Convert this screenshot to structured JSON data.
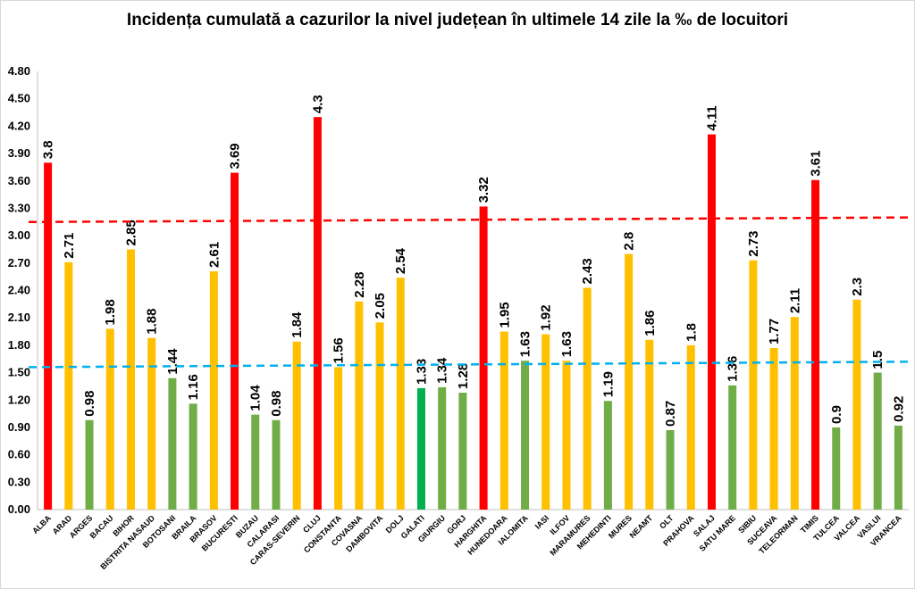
{
  "chart_data": {
    "type": "bar",
    "title": "Incidența cumulată a cazurilor la nivel județean în ultimele 14 zile la ‰ de locuitori",
    "xlabel": "",
    "ylabel": "",
    "ylim": [
      0,
      4.8
    ],
    "yticks": [
      "0.00",
      "0.30",
      "0.60",
      "0.90",
      "1.20",
      "1.50",
      "1.80",
      "2.10",
      "2.40",
      "2.70",
      "3.00",
      "3.30",
      "3.60",
      "3.90",
      "4.20",
      "4.50",
      "4.80"
    ],
    "grid": false,
    "legend": "none",
    "categories": [
      "ALBA",
      "ARAD",
      "ARGES",
      "BACAU",
      "BIHOR",
      "BISTRITA NASAUD",
      "BOTOSANI",
      "BRAILA",
      "BRASOV",
      "BUCURESTI",
      "BUZAU",
      "CALARASI",
      "CARAS-SEVERIN",
      "CLUJ",
      "CONSTANTA",
      "COVASNA",
      "DAMBOVITA",
      "DOLJ",
      "GALATI",
      "GIURGIU",
      "GORJ",
      "HARGHITA",
      "HUNEDOARA",
      "IALOMITA",
      "IASI",
      "ILFOV",
      "MARAMURES",
      "MEHEDINTI",
      "MURES",
      "NEAMT",
      "OLT",
      "PRAHOVA",
      "SALAJ",
      "SATU MARE",
      "SIBIU",
      "SUCEAVA",
      "TELEORMAN",
      "TIMIS",
      "TULCEA",
      "VALCEA",
      "VASLUI",
      "VRANCEA"
    ],
    "values": [
      3.8,
      2.71,
      0.98,
      1.98,
      2.85,
      1.88,
      1.44,
      1.16,
      2.61,
      3.69,
      1.04,
      0.98,
      1.84,
      4.3,
      1.56,
      2.28,
      2.05,
      2.54,
      1.33,
      1.34,
      1.28,
      3.32,
      1.95,
      1.63,
      1.92,
      1.63,
      2.43,
      1.19,
      2.8,
      1.86,
      0.87,
      1.8,
      4.11,
      1.36,
      2.73,
      1.77,
      2.11,
      3.61,
      0.9,
      2.3,
      1.5,
      0.92
    ],
    "data_labels": [
      "3.8",
      "2.71",
      "0.98",
      "1.98",
      "2.85",
      "1.88",
      "1.44",
      "1.16",
      "2.61",
      "3.69",
      "1.04",
      "0.98",
      "1.84",
      "4.3",
      "1.56",
      "2.28",
      "2.05",
      "2.54",
      "1.33",
      "1.34",
      "1.28",
      "3.32",
      "1.95",
      "1.63",
      "1.92",
      "1.63",
      "2.43",
      "1.19",
      "2.8",
      "1.86",
      "0.87",
      "1.8",
      "4.11",
      "1.36",
      "2.73",
      "1.77",
      "2.11",
      "3.61",
      "0.9",
      "2.3",
      "1.5",
      "0.92"
    ],
    "bar_colors": [
      "#ff0000",
      "#ffc000",
      "#70ad47",
      "#ffc000",
      "#ffc000",
      "#ffc000",
      "#70ad47",
      "#70ad47",
      "#ffc000",
      "#ff0000",
      "#70ad47",
      "#70ad47",
      "#ffc000",
      "#ff0000",
      "#ffc000",
      "#ffc000",
      "#ffc000",
      "#ffc000",
      "#00b050",
      "#70ad47",
      "#70ad47",
      "#ff0000",
      "#ffc000",
      "#70ad47",
      "#ffc000",
      "#ffc000",
      "#ffc000",
      "#70ad47",
      "#ffc000",
      "#ffc000",
      "#70ad47",
      "#ffc000",
      "#ff0000",
      "#70ad47",
      "#ffc000",
      "#ffc000",
      "#ffc000",
      "#ff0000",
      "#70ad47",
      "#ffc000",
      "#70ad47",
      "#70ad47"
    ],
    "reference_lines": [
      {
        "color": "#ff0000",
        "style": "dashed",
        "y_start": 3.15,
        "y_end": 3.2
      },
      {
        "color": "#00b0f0",
        "style": "dashed",
        "y_start": 1.56,
        "y_end": 1.62
      }
    ]
  }
}
